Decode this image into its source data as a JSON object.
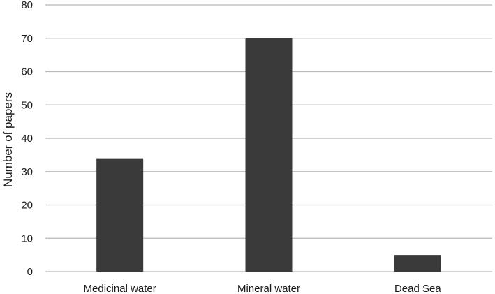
{
  "chart_data": {
    "type": "bar",
    "title": "",
    "xlabel": "",
    "ylabel": "Number of papers",
    "categories": [
      "Medicinal water",
      "Mineral water",
      "Dead Sea"
    ],
    "values": [
      34,
      70,
      5
    ],
    "ylim": [
      0,
      80
    ],
    "yticks": [
      "0",
      "10",
      "20",
      "30",
      "40",
      "50",
      "60",
      "70",
      "80"
    ],
    "grid": true,
    "legend": "none",
    "bar_color": "#3a3a3a"
  }
}
